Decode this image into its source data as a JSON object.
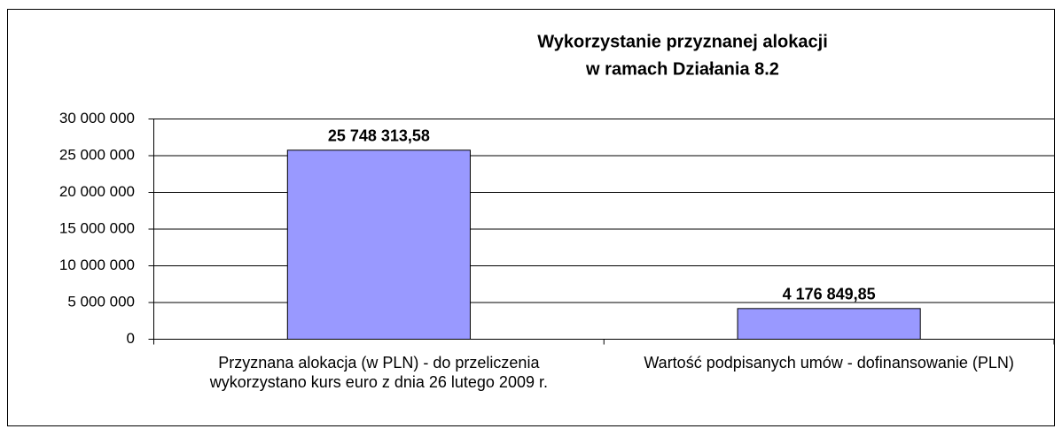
{
  "chart_data": {
    "type": "bar",
    "title": [
      "Wykorzystanie przyznanej alokacji",
      "w ramach Działania 8.2"
    ],
    "categories": [
      "Przyznana alokacja (w PLN) - do przeliczenia wykorzystano kurs euro z dnia 26 lutego 2009 r.",
      "Wartość podpisanych umów - dofinansowanie (PLN)"
    ],
    "values": [
      25748313.58,
      4176849.85
    ],
    "value_labels": [
      "25 748 313,58",
      "4 176 849,85"
    ],
    "color": "#9999ff",
    "ylim": [
      0,
      30000000
    ],
    "yticks": [
      0,
      {
        "value": 5000000,
        "label": "5 000 000"
      },
      {
        "value": 10000000,
        "label": "10 000 000"
      },
      {
        "value": 15000000,
        "label": "15 000 000"
      },
      {
        "value": 20000000,
        "label": "20 000 000"
      },
      {
        "value": 25000000,
        "label": "25 000 000"
      },
      {
        "value": 30000000,
        "label": "30 000 000"
      }
    ],
    "grid": true
  }
}
